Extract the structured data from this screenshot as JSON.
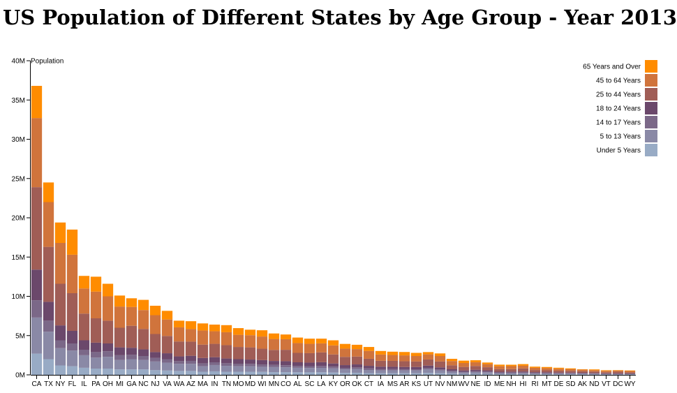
{
  "title": "US Population of Different States by Age Group - Year 2013",
  "chart_data": {
    "type": "bar",
    "stacked": true,
    "title": "US Population of Different States by Age Group - Year 2013",
    "ylabel": "Population",
    "xlabel": "",
    "ylim": [
      0,
      40000000
    ],
    "y_ticks": [
      {
        "value": 0,
        "label": "0M"
      },
      {
        "value": 5000000,
        "label": "5M"
      },
      {
        "value": 10000000,
        "label": "10M"
      },
      {
        "value": 15000000,
        "label": "15M"
      },
      {
        "value": 20000000,
        "label": "20M"
      },
      {
        "value": 25000000,
        "label": "25M"
      },
      {
        "value": 30000000,
        "label": "30M"
      },
      {
        "value": 35000000,
        "label": "35M"
      },
      {
        "value": 40000000,
        "label": "40M"
      }
    ],
    "legend_position": "top-right",
    "categories": [
      "CA",
      "TX",
      "NY",
      "FL",
      "IL",
      "PA",
      "OH",
      "MI",
      "GA",
      "NC",
      "NJ",
      "VA",
      "WA",
      "AZ",
      "MA",
      "IN",
      "TN",
      "MO",
      "MD",
      "WI",
      "MN",
      "CO",
      "AL",
      "SC",
      "LA",
      "KY",
      "OR",
      "OK",
      "CT",
      "IA",
      "MS",
      "AR",
      "KS",
      "UT",
      "NV",
      "NM",
      "WV",
      "NE",
      "ID",
      "ME",
      "NH",
      "HI",
      "RI",
      "MT",
      "DE",
      "SD",
      "AK",
      "ND",
      "VT",
      "DC",
      "WY"
    ],
    "series": [
      {
        "name": "Under 5 Years",
        "color": "#98abc5",
        "values": [
          2700000,
          2000000,
          1200000,
          1100000,
          900000,
          800000,
          800000,
          700000,
          700000,
          700000,
          600000,
          550000,
          500000,
          500000,
          400000,
          450000,
          400000,
          400000,
          400000,
          380000,
          350000,
          350000,
          330000,
          320000,
          330000,
          300000,
          250000,
          270000,
          220000,
          200000,
          200000,
          200000,
          200000,
          250000,
          200000,
          150000,
          110000,
          130000,
          120000,
          80000,
          80000,
          90000,
          70000,
          70000,
          60000,
          60000,
          55000,
          45000,
          35000,
          35000,
          35000
        ]
      },
      {
        "name": "5 to 13 Years",
        "color": "#8a89a6",
        "values": [
          4600000,
          3500000,
          2200000,
          2000000,
          1600000,
          1400000,
          1500000,
          1200000,
          1300000,
          1200000,
          1100000,
          1000000,
          900000,
          900000,
          700000,
          800000,
          750000,
          700000,
          700000,
          650000,
          640000,
          610000,
          570000,
          550000,
          560000,
          520000,
          440000,
          480000,
          400000,
          360000,
          360000,
          360000,
          360000,
          450000,
          350000,
          250000,
          190000,
          230000,
          210000,
          140000,
          140000,
          150000,
          110000,
          110000,
          100000,
          100000,
          95000,
          75000,
          60000,
          50000,
          60000
        ]
      },
      {
        "name": "14 to 17 Years",
        "color": "#7b6888",
        "values": [
          2200000,
          1400000,
          1000000,
          900000,
          700000,
          700000,
          700000,
          600000,
          550000,
          500000,
          450000,
          450000,
          350000,
          380000,
          350000,
          350000,
          330000,
          320000,
          300000,
          300000,
          280000,
          260000,
          250000,
          240000,
          240000,
          230000,
          200000,
          200000,
          200000,
          160000,
          170000,
          160000,
          150000,
          180000,
          150000,
          110000,
          90000,
          100000,
          90000,
          70000,
          70000,
          60000,
          55000,
          50000,
          45000,
          45000,
          40000,
          35000,
          30000,
          20000,
          30000
        ]
      },
      {
        "name": "18 to 24 Years",
        "color": "#6b486b",
        "values": [
          3900000,
          2400000,
          1900000,
          1600000,
          1200000,
          1200000,
          1000000,
          1000000,
          900000,
          850000,
          750000,
          750000,
          600000,
          650000,
          700000,
          650000,
          600000,
          580000,
          550000,
          550000,
          500000,
          520000,
          450000,
          450000,
          480000,
          400000,
          350000,
          380000,
          330000,
          320000,
          300000,
          280000,
          290000,
          300000,
          250000,
          200000,
          170000,
          190000,
          150000,
          110000,
          120000,
          130000,
          110000,
          100000,
          90000,
          90000,
          75000,
          80000,
          65000,
          90000,
          55000
        ]
      },
      {
        "name": "25 to 44 Years",
        "color": "#a05d56",
        "values": [
          10500000,
          7000000,
          5300000,
          4800000,
          3400000,
          3100000,
          2900000,
          2500000,
          2800000,
          2600000,
          2300000,
          2200000,
          1900000,
          1800000,
          1700000,
          1700000,
          1700000,
          1550000,
          1550000,
          1450000,
          1400000,
          1450000,
          1200000,
          1200000,
          1250000,
          1150000,
          1050000,
          1000000,
          900000,
          750000,
          750000,
          730000,
          700000,
          780000,
          750000,
          500000,
          450000,
          480000,
          400000,
          320000,
          320000,
          380000,
          270000,
          250000,
          230000,
          210000,
          200000,
          180000,
          150000,
          200000,
          150000
        ]
      },
      {
        "name": "45 to 64 Years",
        "color": "#d0743c",
        "values": [
          8800000,
          5700000,
          5200000,
          4900000,
          3200000,
          3400000,
          3100000,
          2700000,
          2400000,
          2400000,
          2400000,
          2100000,
          1800000,
          1600000,
          1800000,
          1600000,
          1650000,
          1550000,
          1550000,
          1550000,
          1400000,
          1350000,
          1250000,
          1200000,
          1150000,
          1150000,
          1050000,
          950000,
          1000000,
          800000,
          750000,
          750000,
          700000,
          650000,
          700000,
          550000,
          500000,
          480000,
          400000,
          380000,
          380000,
          350000,
          280000,
          270000,
          250000,
          210000,
          190000,
          180000,
          170000,
          140000,
          160000
        ]
      },
      {
        "name": "65 Years and Over",
        "color": "#ff8c00",
        "values": [
          4100000,
          2500000,
          2600000,
          3200000,
          1600000,
          1900000,
          1600000,
          1400000,
          1100000,
          1300000,
          1200000,
          1100000,
          850000,
          1000000,
          900000,
          850000,
          900000,
          850000,
          700000,
          800000,
          700000,
          600000,
          700000,
          650000,
          600000,
          650000,
          600000,
          550000,
          500000,
          450000,
          420000,
          430000,
          400000,
          290000,
          330000,
          280000,
          300000,
          250000,
          200000,
          200000,
          180000,
          210000,
          150000,
          150000,
          130000,
          110000,
          60000,
          100000,
          80000,
          60000,
          70000
        ]
      }
    ]
  }
}
